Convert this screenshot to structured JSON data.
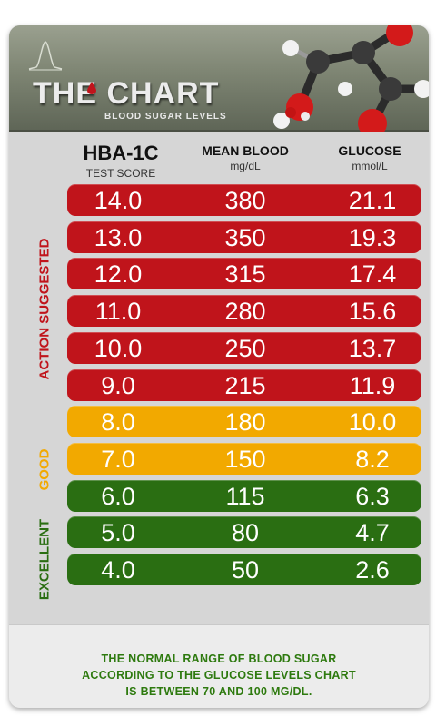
{
  "header": {
    "title": "THE CHART",
    "subtitle": "BLOOD SUGAR LEVELS"
  },
  "columns": [
    {
      "title": "HBA-1C",
      "subtitle": "TEST SCORE"
    },
    {
      "title": "MEAN BLOOD",
      "subtitle": "mg/dL"
    },
    {
      "title": "GLUCOSE",
      "subtitle": "mmol/L"
    }
  ],
  "categories": [
    {
      "label": "ACTION SUGGESTED",
      "color": "#c0141b"
    },
    {
      "label": "GOOD",
      "color": "#f2a900"
    },
    {
      "label": "EXCELLENT",
      "color": "#2a6e12"
    }
  ],
  "chart_data": {
    "type": "table",
    "title": "THE CHART",
    "subtitle": "BLOOD SUGAR LEVELS",
    "columns": [
      "HBA-1C TEST SCORE",
      "MEAN BLOOD mg/dL",
      "GLUCOSE mmol/L"
    ],
    "rows": [
      {
        "hba1c": "14.0",
        "mean_blood": "380",
        "glucose": "21.1",
        "category": "ACTION SUGGESTED"
      },
      {
        "hba1c": "13.0",
        "mean_blood": "350",
        "glucose": "19.3",
        "category": "ACTION SUGGESTED"
      },
      {
        "hba1c": "12.0",
        "mean_blood": "315",
        "glucose": "17.4",
        "category": "ACTION SUGGESTED"
      },
      {
        "hba1c": "11.0",
        "mean_blood": "280",
        "glucose": "15.6",
        "category": "ACTION SUGGESTED"
      },
      {
        "hba1c": "10.0",
        "mean_blood": "250",
        "glucose": "13.7",
        "category": "ACTION SUGGESTED"
      },
      {
        "hba1c": "9.0",
        "mean_blood": "215",
        "glucose": "11.9",
        "category": "ACTION SUGGESTED"
      },
      {
        "hba1c": "8.0",
        "mean_blood": "180",
        "glucose": "10.0",
        "category": "GOOD"
      },
      {
        "hba1c": "7.0",
        "mean_blood": "150",
        "glucose": "8.2",
        "category": "GOOD"
      },
      {
        "hba1c": "6.0",
        "mean_blood": "115",
        "glucose": "6.3",
        "category": "EXCELLENT"
      },
      {
        "hba1c": "5.0",
        "mean_blood": "80",
        "glucose": "4.7",
        "category": "EXCELLENT"
      },
      {
        "hba1c": "4.0",
        "mean_blood": "50",
        "glucose": "2.6",
        "category": "EXCELLENT"
      }
    ]
  },
  "footer": {
    "line1": "THE NORMAL RANGE OF BLOOD SUGAR",
    "line2": "ACCORDING TO THE GLUCOSE LEVELS CHART",
    "line3": "IS BETWEEN 70 AND 100 MG/DL."
  }
}
